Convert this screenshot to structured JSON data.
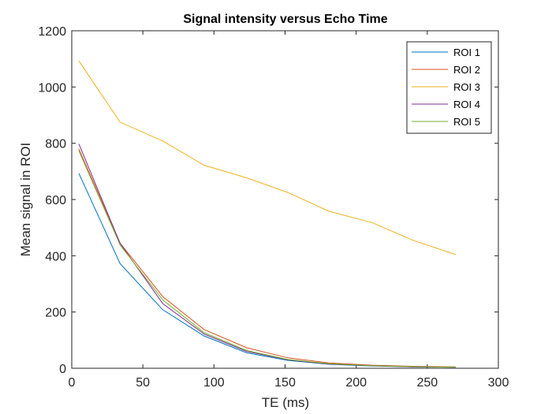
{
  "chart_data": {
    "type": "line",
    "title": "Signal intensity versus Echo Time",
    "xlabel": "TE (ms)",
    "ylabel": "Mean signal in ROI",
    "xlim": [
      0,
      300
    ],
    "ylim": [
      0,
      1200
    ],
    "xticks": [
      "0",
      "50",
      "100",
      "150",
      "200",
      "250",
      "300"
    ],
    "yticks": [
      "0",
      "200",
      "400",
      "600",
      "800",
      "1000",
      "1200"
    ],
    "grid": false,
    "legend_position": "top-right",
    "x": [
      5,
      34,
      64,
      93,
      123,
      152,
      181,
      211,
      240,
      270
    ],
    "series": [
      {
        "name": "ROI 1",
        "color": "#0072BD",
        "values": [
          693,
          372,
          208,
          115,
          55,
          28,
          14,
          8,
          5,
          4
        ]
      },
      {
        "name": "ROI 2",
        "color": "#D95319",
        "values": [
          780,
          445,
          255,
          138,
          73,
          37,
          19,
          11,
          7,
          5
        ]
      },
      {
        "name": "ROI 3",
        "color": "#EDB120",
        "values": [
          1093,
          875,
          808,
          722,
          677,
          625,
          558,
          518,
          455,
          404
        ]
      },
      {
        "name": "ROI 4",
        "color": "#7E2F8E",
        "values": [
          798,
          444,
          230,
          122,
          60,
          30,
          15,
          9,
          5,
          4
        ]
      },
      {
        "name": "ROI 5",
        "color": "#77AC30",
        "values": [
          773,
          438,
          243,
          127,
          63,
          31,
          16,
          9,
          6,
          4
        ]
      }
    ]
  }
}
